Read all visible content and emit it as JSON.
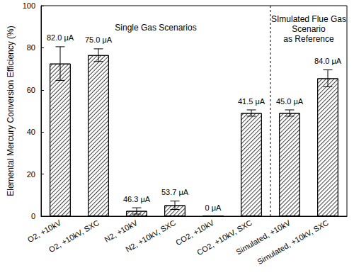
{
  "chart_data": {
    "type": "bar",
    "ylabel": "Elemental Mercury Conversion Efficiency (%)",
    "categories": [
      "O2, +10kV",
      "O2, +10kV, SXC",
      "N2, +10kV",
      "N2, +10kV, SXC",
      "CO2, +10kV",
      "CO2, +10kV, SXC",
      "Simulated, +10kV",
      "Simulated, +10kV, SXC"
    ],
    "values": [
      72.5,
      76.5,
      2.5,
      5.2,
      0,
      49,
      49,
      65.5
    ],
    "errors": [
      8,
      3,
      1.5,
      2,
      null,
      1.5,
      1.5,
      4
    ],
    "bar_annotations": [
      "82.0 μA",
      "75.0 μA",
      "46.3 μA",
      "53.7 μA",
      "0 μA",
      "41.5 μA",
      "45.0 μA",
      "84.0 μA"
    ],
    "sections": [
      {
        "label": [
          "Single Gas Scenarios"
        ],
        "categories": 6
      },
      {
        "label": [
          "SImulated Flue Gas",
          "Scenario",
          "as Reference"
        ],
        "categories": 2
      }
    ],
    "color": "#ffffff",
    "ylim": [
      0,
      100
    ],
    "yticks": [
      0,
      20,
      40,
      60,
      80,
      100
    ],
    "grid": false
  }
}
